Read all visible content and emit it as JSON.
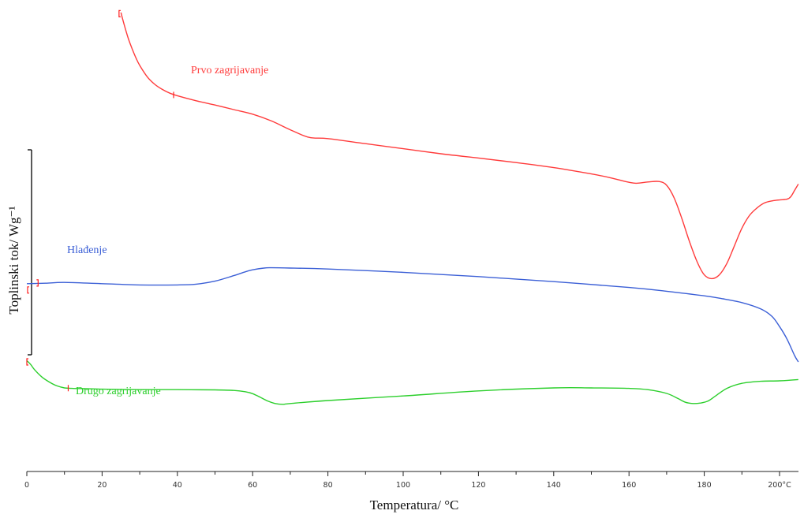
{
  "chart_data": {
    "type": "line",
    "title": "",
    "xlabel": "Temperatura/ °C",
    "ylabel": "Toplinski tok/ Wg⁻¹",
    "xlim": [
      0,
      205
    ],
    "x_ticks": [
      "0",
      "20",
      "40",
      "60",
      "80",
      "100",
      "120",
      "140",
      "160",
      "180",
      "200°C"
    ],
    "x_tick_values": [
      0,
      20,
      40,
      60,
      80,
      100,
      120,
      140,
      160,
      180,
      200
    ],
    "grid": false,
    "legend": "none",
    "series": [
      {
        "name": "Prvo zagrijavanje",
        "color": "#ff3b3b",
        "x": [
          25,
          26,
          27,
          28,
          29,
          30,
          32,
          34,
          36,
          38,
          40,
          45,
          50,
          55,
          60,
          65,
          70,
          75,
          80,
          90,
          100,
          110,
          120,
          130,
          140,
          150,
          155,
          160,
          162,
          165,
          168,
          170,
          172,
          174,
          176,
          178,
          180,
          182,
          184,
          186,
          188,
          190,
          192,
          194,
          196,
          198,
          200,
          202,
          203,
          204,
          205
        ],
        "y": [
          98.5,
          93,
          88,
          84,
          80.5,
          77.5,
          73,
          70,
          68,
          66.5,
          65.5,
          63.5,
          61.8,
          60,
          58.2,
          55.5,
          52,
          49,
          48.5,
          46.5,
          44.5,
          42.5,
          40.8,
          39,
          37,
          34.5,
          33,
          31.2,
          30.8,
          31.3,
          31.5,
          30,
          25,
          17,
          8,
          0,
          -5.5,
          -7,
          -5.5,
          -1,
          6,
          13,
          18,
          21,
          23,
          23.8,
          24.2,
          24.5,
          25.5,
          28,
          30.5
        ]
      },
      {
        "name": "Hlađenje",
        "color": "#3b5fd6",
        "x": [
          0,
          5,
          10,
          20,
          30,
          40,
          45,
          50,
          55,
          58,
          60,
          63,
          65,
          70,
          80,
          100,
          120,
          140,
          160,
          170,
          180,
          185,
          190,
          195,
          198,
          200,
          202,
          204,
          205
        ],
        "y": [
          -9,
          -8.8,
          -8.5,
          -9,
          -9.5,
          -9.5,
          -9.2,
          -8,
          -5.8,
          -4.3,
          -3.5,
          -2.8,
          -2.7,
          -2.8,
          -3.2,
          -4.5,
          -6.2,
          -8.2,
          -10.5,
          -12,
          -13.8,
          -15,
          -16.5,
          -19,
          -22,
          -26,
          -31,
          -37.5,
          -40
        ]
      },
      {
        "name": "Drugo zagrijavanje",
        "color": "#2ccf2c",
        "x": [
          0,
          1,
          2,
          4,
          6,
          8,
          10,
          12,
          15,
          20,
          30,
          40,
          50,
          55,
          58,
          60,
          62,
          64,
          66,
          68,
          70,
          80,
          100,
          120,
          140,
          150,
          160,
          165,
          170,
          173,
          175,
          177,
          179,
          181,
          183,
          186,
          190,
          195,
          200,
          205
        ],
        "y": [
          -39.5,
          -41,
          -43,
          -46,
          -48,
          -49.5,
          -50.3,
          -50.5,
          -50.6,
          -50.8,
          -51,
          -51,
          -51.1,
          -51.3,
          -51.8,
          -52.6,
          -54,
          -55.5,
          -56.5,
          -56.8,
          -56.5,
          -55.3,
          -53.5,
          -51.5,
          -50.3,
          -50.3,
          -50.5,
          -51,
          -52.5,
          -54.5,
          -56,
          -56.5,
          -56.3,
          -55.5,
          -53.5,
          -50.5,
          -48.5,
          -47.7,
          -47.5,
          -47
        ]
      }
    ],
    "annotations": [
      "Prvo zagrijavanje",
      "Hlađenje",
      "Drugo zagrijavanje"
    ]
  }
}
